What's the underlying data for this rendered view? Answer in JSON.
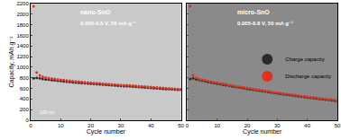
{
  "chart_data": [
    {
      "type": "scatter",
      "title": "nano-SnO",
      "subtitle": "0.005-0.8 V, 50 mA g⁻¹",
      "x_label": "Cycle number",
      "y_label": "Capacity, mAh g⁻¹",
      "x": [
        1,
        2,
        3,
        4,
        5,
        6,
        7,
        8,
        9,
        10,
        11,
        12,
        13,
        14,
        15,
        16,
        17,
        18,
        19,
        20,
        21,
        22,
        23,
        24,
        25,
        26,
        27,
        28,
        29,
        30,
        31,
        32,
        33,
        34,
        35,
        36,
        37,
        38,
        39,
        40,
        41,
        42,
        43,
        44,
        45,
        46,
        47,
        48,
        49,
        50
      ],
      "series": [
        {
          "name": "Charge capacity",
          "color": "#2a2a2a",
          "marker": "circle",
          "values": [
            790,
            800,
            790,
            780,
            772,
            765,
            758,
            751,
            745,
            739,
            733,
            727,
            722,
            717,
            712,
            707,
            702,
            697,
            693,
            689,
            685,
            681,
            677,
            673,
            669,
            665,
            661,
            657,
            653,
            649,
            645,
            641,
            637,
            633,
            629,
            625,
            621,
            617,
            613,
            609,
            605,
            601,
            597,
            593,
            589,
            586,
            583,
            580,
            577,
            574
          ]
        },
        {
          "name": "Discharge capacity",
          "color": "#e0301e",
          "marker": "circle",
          "values": [
            2150,
            900,
            845,
            820,
            805,
            795,
            785,
            778,
            770,
            763,
            756,
            750,
            744,
            738,
            732,
            727,
            722,
            717,
            712,
            707,
            702,
            698,
            694,
            690,
            686,
            682,
            678,
            674,
            670,
            666,
            662,
            658,
            654,
            650,
            646,
            642,
            638,
            634,
            630,
            626,
            622,
            618,
            614,
            610,
            606,
            602,
            598,
            594,
            589,
            585
          ]
        }
      ],
      "xlim": [
        0,
        50
      ],
      "xticks": [
        0,
        10,
        20,
        30,
        40,
        50
      ],
      "ylim": [
        0,
        2200
      ],
      "yticks": [
        0,
        200,
        400,
        600,
        800,
        1000,
        1200,
        1400,
        1600,
        1800,
        2000,
        2200
      ],
      "annotations": [
        "100 nm"
      ],
      "tick_labels": true
    },
    {
      "type": "scatter",
      "title": "micro-SnO",
      "subtitle": "0.005-0.8 V, 50 mA g⁻¹",
      "x_label": "Cycle number",
      "x": [
        1,
        2,
        3,
        4,
        5,
        6,
        7,
        8,
        9,
        10,
        11,
        12,
        13,
        14,
        15,
        16,
        17,
        18,
        19,
        20,
        21,
        22,
        23,
        24,
        25,
        26,
        27,
        28,
        29,
        30,
        31,
        32,
        33,
        34,
        35,
        36,
        37,
        38,
        39,
        40,
        41,
        42,
        43,
        44,
        45,
        46,
        47,
        48,
        49,
        50
      ],
      "series": [
        {
          "name": "Charge capacity",
          "color": "#2a2a2a",
          "marker": "circle",
          "values": [
            780,
            790,
            775,
            760,
            747,
            735,
            723,
            712,
            701,
            690,
            680,
            670,
            660,
            650,
            640,
            630,
            621,
            612,
            603,
            594,
            585,
            576,
            567,
            558,
            549,
            540,
            532,
            524,
            516,
            508,
            500,
            492,
            484,
            476,
            468,
            460,
            453,
            446,
            439,
            432,
            425,
            418,
            411,
            404,
            397,
            390,
            383,
            376,
            369,
            362
          ]
        },
        {
          "name": "Discharge capacity",
          "color": "#e0301e",
          "marker": "circle",
          "values": [
            2150,
            850,
            800,
            780,
            765,
            752,
            740,
            728,
            717,
            706,
            695,
            685,
            675,
            665,
            655,
            645,
            635,
            626,
            617,
            608,
            599,
            590,
            581,
            572,
            563,
            554,
            545,
            537,
            529,
            521,
            513,
            505,
            497,
            489,
            481,
            473,
            465,
            458,
            451,
            444,
            437,
            430,
            423,
            416,
            409,
            402,
            395,
            388,
            381,
            374
          ]
        }
      ],
      "xlim": [
        0,
        50
      ],
      "xticks": [
        0,
        10,
        20,
        30,
        40,
        50
      ],
      "ylim": [
        0,
        2200
      ],
      "yticks": [
        0,
        200,
        400,
        600,
        800,
        1000,
        1200,
        1400,
        1600,
        1800,
        2000,
        2200
      ],
      "tick_labels": "x",
      "legend": "right"
    }
  ]
}
